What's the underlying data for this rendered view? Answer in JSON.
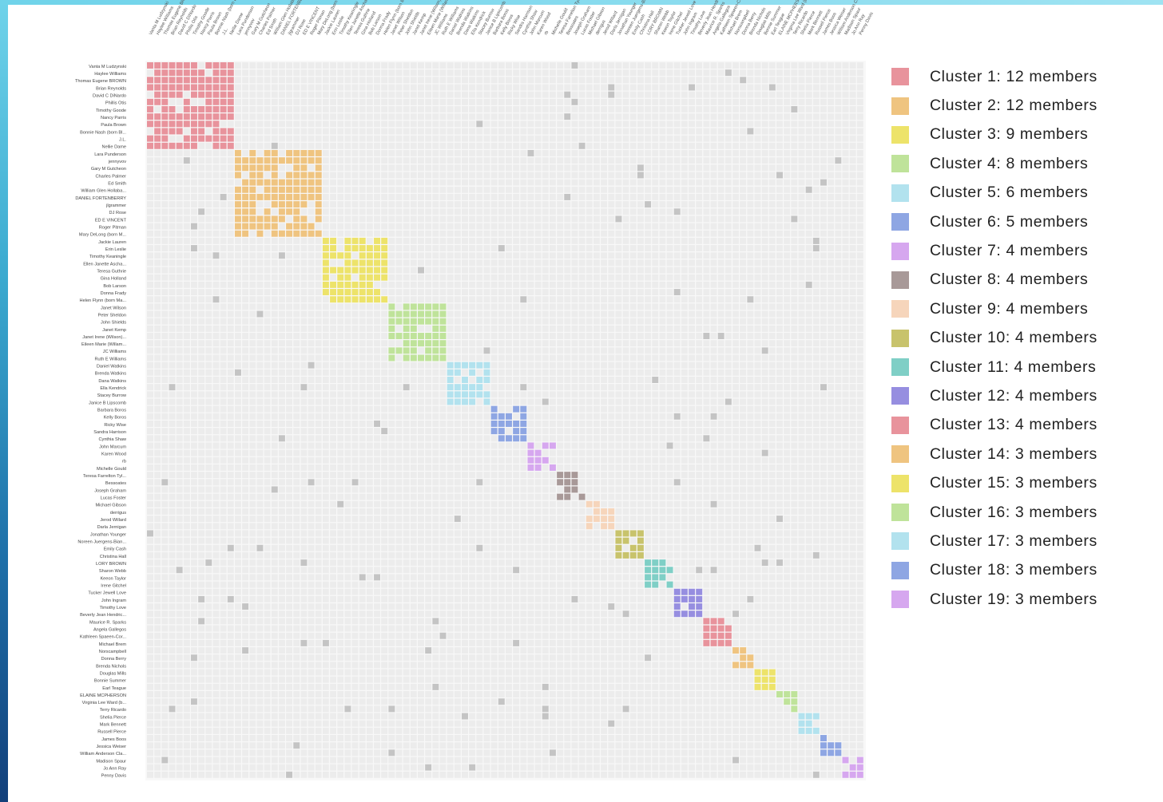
{
  "chart_data": {
    "type": "heatmap",
    "title": "",
    "xlabel": "",
    "ylabel": "",
    "cluster_sizes": [
      12,
      12,
      9,
      8,
      6,
      5,
      4,
      4,
      4,
      4,
      4,
      4,
      4,
      3,
      3,
      3,
      3,
      3,
      3
    ],
    "cluster_colors": [
      "#e8939c",
      "#efc480",
      "#ede36a",
      "#bfe39a",
      "#b2e2ee",
      "#8ea6e3",
      "#d6a7ef",
      "#a89998",
      "#f6d5bb",
      "#c8c36c",
      "#7fcfc6",
      "#968ee0",
      "#e8939c",
      "#efc480",
      "#ede36a",
      "#bfe39a",
      "#b2e2ee",
      "#8ea6e3",
      "#d6a7ef"
    ],
    "legend": [
      "Cluster 1: 12 members",
      "Cluster 2: 12 members",
      "Cluster 3: 9 members",
      "Cluster 4: 8 members",
      "Cluster 5: 6 members",
      "Cluster 6: 5 members",
      "Cluster 7: 4 members",
      "Cluster 8: 4 members",
      "Cluster 9: 4 members",
      "Cluster 10: 4 members",
      "Cluster 11: 4 members",
      "Cluster 12: 4 members",
      "Cluster 13: 4 members",
      "Cluster 14: 3 members",
      "Cluster 15: 3 members",
      "Cluster 16: 3 members",
      "Cluster 17: 3 members",
      "Cluster 18: 3 members",
      "Cluster 19: 3 members"
    ],
    "legend_position": "right",
    "background_cell_color": "#ececec",
    "link_color": "#c4c4c4",
    "members": [
      "Vanta M Ludzynski",
      "Haylee Williams",
      "Thomas Eugene BROWN",
      "Brian Reynolds",
      "David C DiNardo",
      "Phillis Otis",
      "Timothy Goode",
      "Nancy Parris",
      "Paula Brown",
      "Bonnie Nash (born Bl...",
      "J.L.",
      "Nellie Dame",
      "Lara Punderson",
      "jennyvov",
      "Gary M Gutcheon",
      "Charles Palmer",
      "Ed Smith",
      "William Glen Hollaba...",
      "DANIEL FORTENBERRY",
      "jlgrammer",
      "DJ Rose",
      "ED E VINCENT",
      "Roger Pitman",
      "Mary DeLong (born M...",
      "Jackie Lauren",
      "Erin Leslie",
      "Timothy Keaningle",
      "Ellen Janette Ascha...",
      "Teresa Guthrie",
      "Gina Holland",
      "Bob Larson",
      "Donna Frady",
      "Helen Flynn (born Ma...",
      "Janet Wilson",
      "Peter Sheldon",
      "John Shields",
      "Janet Kemp",
      "Janet Irene (Wilson)...",
      "Eileen Marie (Willam...",
      "JC Williams",
      "Ruth E Williams",
      "Daniel Watkins",
      "Brenda Watkins",
      "Dana Watkins",
      "Ella Kendrick",
      "Stacey Burrow",
      "Janice B Lipscomb",
      "Barbara Boros",
      "Kelly Boros",
      "Ricky Wise",
      "Sandra Harrison",
      "Cynthia Shaw",
      "John Marcum",
      "Karen Wood",
      "rb",
      "Michelle Gould",
      "Teresa Farrelton Tyl...",
      "Bessoates",
      "Joseph Graham",
      "Lucas Foster",
      "Michael Gibson",
      "derrigus",
      "Jerod Willard",
      "Darla Jernigan",
      "Jonathan Younger",
      "Noreen Juergens-Bian...",
      "Emily Cash",
      "Christina Hall",
      "LORY BROWN",
      "Sharon Webb",
      "Keeon Taylor",
      "Irene Gitchel",
      "Tucker Jewell Love",
      "John Ingram",
      "Timothy Love",
      "Beverly Jean Hendric...",
      "Maurice R. Sparks",
      "Angela Gallegos",
      "Kathleen Spaeen-Cor...",
      "Michael Brem",
      "Norscampbell",
      "Donna Berry",
      "Brenda Nichols",
      "Douglas Mills",
      "Bonnie Summer",
      "Earl Teague",
      "ELAINE MCPHERSON",
      "Virginia Lee Ward (b...",
      "Terry Ricardo",
      "Shelia Pierce",
      "Mark Bennett",
      "Russell Pierce",
      "James Boos",
      "Jessica Weiser",
      "William Anderson Cla...",
      "Madison Spaur",
      "Jo Ann Ray",
      "Penny Davis"
    ]
  }
}
